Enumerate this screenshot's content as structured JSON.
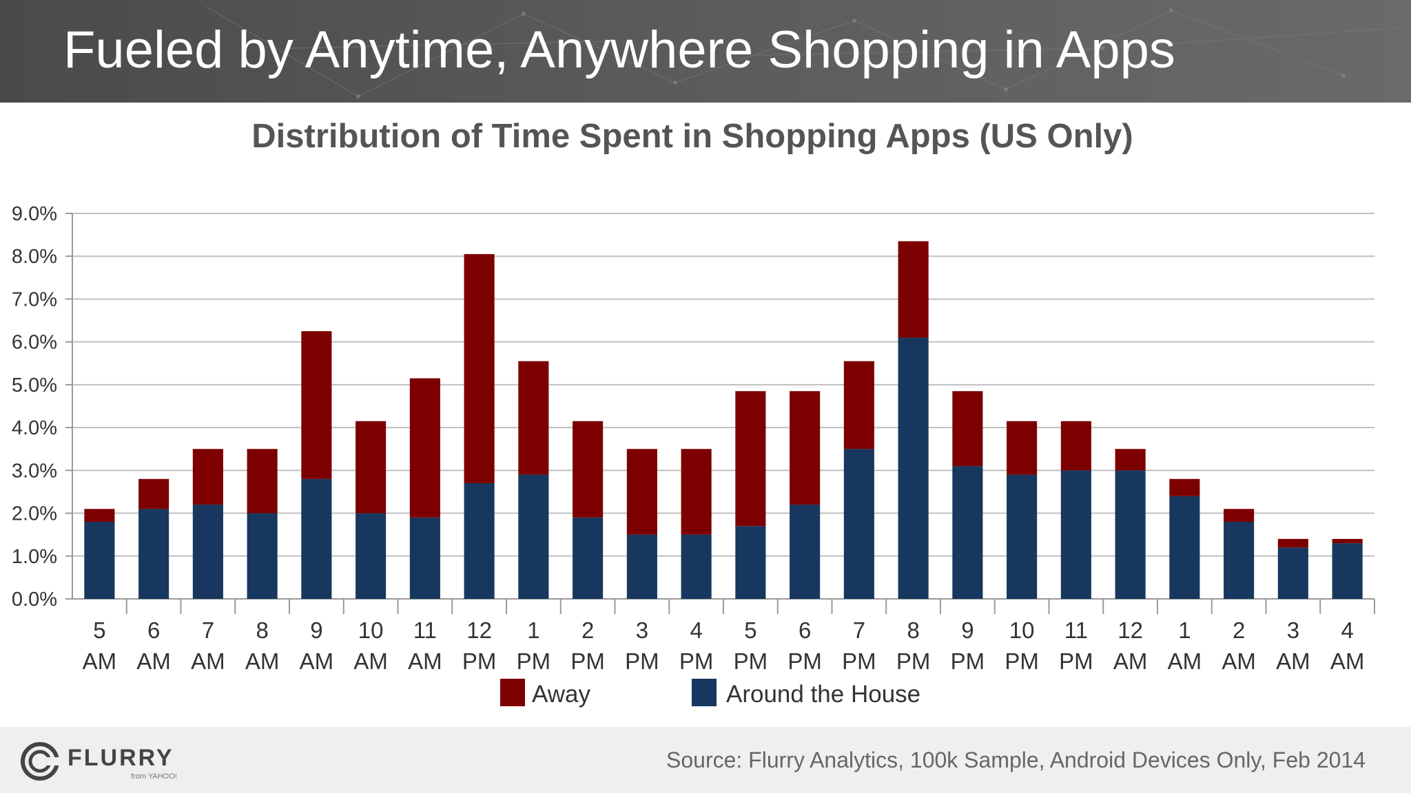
{
  "header": {
    "title": "Fueled by Anytime, Anywhere Shopping in Apps"
  },
  "footer": {
    "logo_text": "FLURRY",
    "logo_sub": "from YAHOO!",
    "source": "Source: Flurry Analytics, 100k Sample, Android Devices Only, Feb 2014"
  },
  "colors": {
    "away": "#7d0000",
    "around_house": "#17375e",
    "header_bg": "#555555"
  },
  "chart_data": {
    "type": "bar",
    "stacked": true,
    "title": "Distribution of Time Spent in Shopping Apps (US Only)",
    "xlabel": "",
    "ylabel": "",
    "ylim": [
      0,
      9
    ],
    "y_ticks": [
      "0.0%",
      "1.0%",
      "2.0%",
      "3.0%",
      "4.0%",
      "5.0%",
      "6.0%",
      "7.0%",
      "8.0%",
      "9.0%"
    ],
    "grid": true,
    "legend": "bottom",
    "categories": [
      [
        "5",
        "AM"
      ],
      [
        "6",
        "AM"
      ],
      [
        "7",
        "AM"
      ],
      [
        "8",
        "AM"
      ],
      [
        "9",
        "AM"
      ],
      [
        "10",
        "AM"
      ],
      [
        "11",
        "AM"
      ],
      [
        "12",
        "PM"
      ],
      [
        "1",
        "PM"
      ],
      [
        "2",
        "PM"
      ],
      [
        "3",
        "PM"
      ],
      [
        "4",
        "PM"
      ],
      [
        "5",
        "PM"
      ],
      [
        "6",
        "PM"
      ],
      [
        "7",
        "PM"
      ],
      [
        "8",
        "PM"
      ],
      [
        "9",
        "PM"
      ],
      [
        "10",
        "PM"
      ],
      [
        "11",
        "PM"
      ],
      [
        "12",
        "AM"
      ],
      [
        "1",
        "AM"
      ],
      [
        "2",
        "AM"
      ],
      [
        "3",
        "AM"
      ],
      [
        "4",
        "AM"
      ]
    ],
    "series": [
      {
        "name": "Around the House",
        "values": [
          1.8,
          2.1,
          2.2,
          2.0,
          2.8,
          2.0,
          1.9,
          2.7,
          2.9,
          1.9,
          1.5,
          1.5,
          1.7,
          2.2,
          3.5,
          6.1,
          3.1,
          2.9,
          3.0,
          3.0,
          2.4,
          1.8,
          1.2,
          1.3
        ]
      },
      {
        "name": "Away",
        "values": [
          0.3,
          0.7,
          1.3,
          1.5,
          3.45,
          2.15,
          3.25,
          5.35,
          2.65,
          2.25,
          2.0,
          2.0,
          3.15,
          2.65,
          2.05,
          2.25,
          1.75,
          1.25,
          1.15,
          0.5,
          0.4,
          0.3,
          0.2,
          0.1
        ]
      }
    ],
    "legend_order": [
      "Away",
      "Around the House"
    ]
  }
}
